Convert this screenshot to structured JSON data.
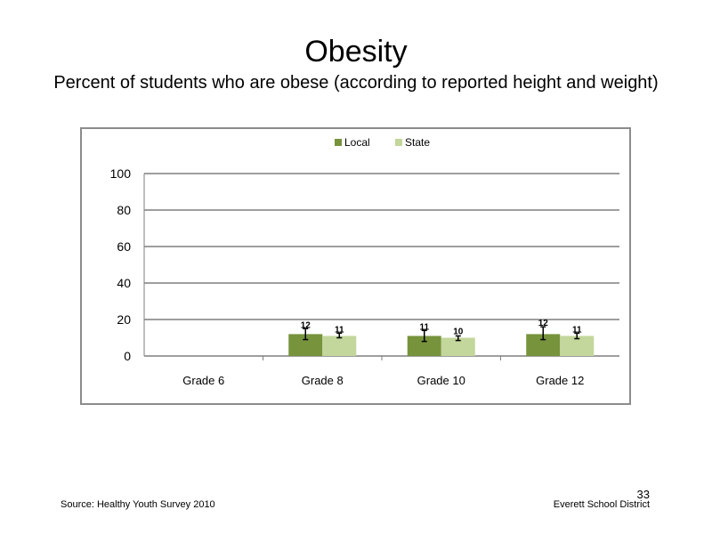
{
  "title": "Obesity",
  "subtitle": "Percent of students who are obese (according to reported height and weight)",
  "footer": {
    "source": "Source: Healthy Youth Survey 2010",
    "district": "Everett School District",
    "page_number": "33"
  },
  "chart_data": {
    "type": "bar",
    "categories": [
      "Grade 6",
      "Grade 8",
      "Grade 10",
      "Grade 12"
    ],
    "series": [
      {
        "name": "Local",
        "color": "#77933c",
        "values": [
          null,
          12,
          11,
          12
        ],
        "labels": [
          "",
          "12",
          "11",
          "12"
        ],
        "error_low": [
          null,
          9,
          8,
          9
        ],
        "error_high": [
          null,
          15,
          14,
          16
        ]
      },
      {
        "name": "State",
        "color": "#c3d69b",
        "values": [
          null,
          11,
          10,
          11
        ],
        "labels": [
          "",
          "11",
          "10",
          "11"
        ],
        "error_low": [
          null,
          10,
          8.5,
          9.5
        ],
        "error_high": [
          null,
          12.5,
          11,
          12.5
        ]
      }
    ],
    "ylim": [
      0,
      100
    ],
    "yticks": [
      0,
      20,
      40,
      60,
      80,
      100
    ],
    "grid": true,
    "legend": "top-center"
  }
}
